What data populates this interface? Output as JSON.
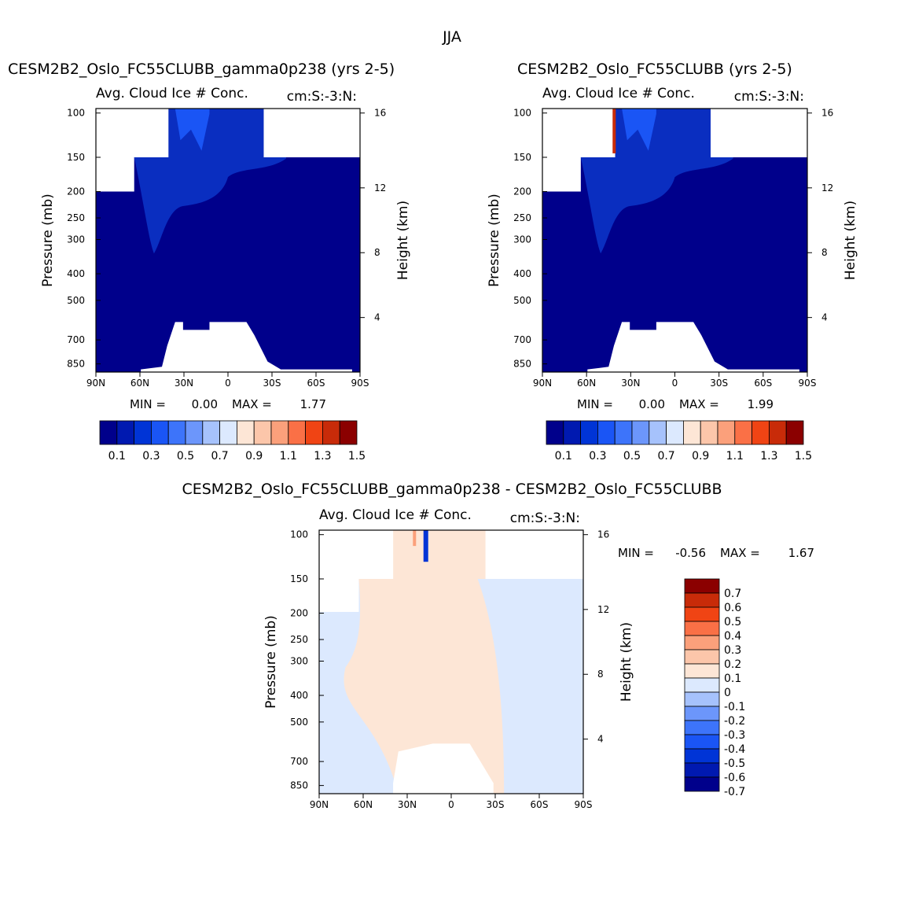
{
  "figure_title": "JJA",
  "colors": {
    "abs_scale": [
      "#00008b",
      "#0019b0",
      "#0034d6",
      "#1a55f5",
      "#3d74fa",
      "#6c96fb",
      "#a6c2fc",
      "#dce9fe",
      "#fde6d6",
      "#fcc6aa",
      "#fba07b",
      "#fa7046",
      "#f04414",
      "#c82b09",
      "#8b0000"
    ],
    "diff_scale": [
      "#00008b",
      "#0019b0",
      "#0034d6",
      "#1a55f5",
      "#3d74fa",
      "#6c96fb",
      "#a6c2fc",
      "#dce9fe",
      "#fde6d6",
      "#fcc6aa",
      "#fba07b",
      "#fa7046",
      "#f04414",
      "#c82b09",
      "#8b0000"
    ],
    "field_dark": "#00008b",
    "field_mid": "#0a2ec0",
    "diff_pos": "#fde6d6",
    "diff_neg": "#dce9fe"
  },
  "chart_data": [
    {
      "type": "heatmap",
      "panel": "top-left",
      "title": "CESM2B2_Oslo_FC55CLUBB_gamma0p238 (yrs 2-5)",
      "subtitle": "Avg. Cloud Ice # Conc.",
      "units": "cm:S:-3:N:",
      "xlabel": "",
      "ylabel": "Pressure (mb)",
      "ylabel_right": "Height (km)",
      "x_ticks": [
        "90N",
        "60N",
        "30N",
        "0",
        "30S",
        "60S",
        "90S"
      ],
      "y_ticks": [
        "100",
        "150",
        "200",
        "250",
        "300",
        "400",
        "500",
        "700",
        "850"
      ],
      "y_right_ticks": [
        "16",
        "12",
        "8",
        "4"
      ],
      "min_label": "MIN =",
      "min_value": "0.00",
      "max_label": "MAX =",
      "max_value": "1.77",
      "colorbar_labels": [
        "0.1",
        "0.3",
        "0.5",
        "0.7",
        "0.9",
        "1.1",
        "1.3",
        "1.5"
      ],
      "colorbar_levels": [
        0.1,
        0.2,
        0.3,
        0.4,
        0.5,
        0.6,
        0.7,
        0.8,
        0.9,
        1.0,
        1.1,
        1.2,
        1.3,
        1.4,
        1.5
      ]
    },
    {
      "type": "heatmap",
      "panel": "top-right",
      "title": "CESM2B2_Oslo_FC55CLUBB (yrs 2-5)",
      "subtitle": "Avg. Cloud Ice # Conc.",
      "units": "cm:S:-3:N:",
      "xlabel": "",
      "ylabel": "Pressure (mb)",
      "ylabel_right": "Height (km)",
      "x_ticks": [
        "90N",
        "60N",
        "30N",
        "0",
        "30S",
        "60S",
        "90S"
      ],
      "y_ticks": [
        "100",
        "150",
        "200",
        "250",
        "300",
        "400",
        "500",
        "700",
        "850"
      ],
      "y_right_ticks": [
        "16",
        "12",
        "8",
        "4"
      ],
      "min_label": "MIN =",
      "min_value": "0.00",
      "max_label": "MAX =",
      "max_value": "1.99",
      "colorbar_labels": [
        "0.1",
        "0.3",
        "0.5",
        "0.7",
        "0.9",
        "1.1",
        "1.3",
        "1.5"
      ],
      "colorbar_levels": [
        0.1,
        0.2,
        0.3,
        0.4,
        0.5,
        0.6,
        0.7,
        0.8,
        0.9,
        1.0,
        1.1,
        1.2,
        1.3,
        1.4,
        1.5
      ]
    },
    {
      "type": "heatmap",
      "panel": "bottom",
      "title": "CESM2B2_Oslo_FC55CLUBB_gamma0p238 - CESM2B2_Oslo_FC55CLUBB",
      "subtitle": "Avg. Cloud Ice # Conc.",
      "units": "cm:S:-3:N:",
      "xlabel": "",
      "ylabel": "Pressure (mb)",
      "ylabel_right": "Height (km)",
      "x_ticks": [
        "90N",
        "60N",
        "30N",
        "0",
        "30S",
        "60S",
        "90S"
      ],
      "y_ticks": [
        "100",
        "150",
        "200",
        "250",
        "300",
        "400",
        "500",
        "700",
        "850"
      ],
      "y_right_ticks": [
        "16",
        "12",
        "8",
        "4"
      ],
      "min_label": "MIN =",
      "min_value": "-0.56",
      "max_label": "MAX =",
      "max_value": "1.67",
      "colorbar_labels": [
        "0.7",
        "0.6",
        "0.5",
        "0.4",
        "0.3",
        "0.2",
        "0.1",
        "0",
        "-0.1",
        "-0.2",
        "-0.3",
        "-0.4",
        "-0.5",
        "-0.6",
        "-0.7"
      ],
      "colorbar_levels": [
        0.7,
        0.6,
        0.5,
        0.4,
        0.3,
        0.2,
        0.1,
        0,
        -0.1,
        -0.2,
        -0.3,
        -0.4,
        -0.5,
        -0.6,
        -0.7
      ]
    }
  ]
}
